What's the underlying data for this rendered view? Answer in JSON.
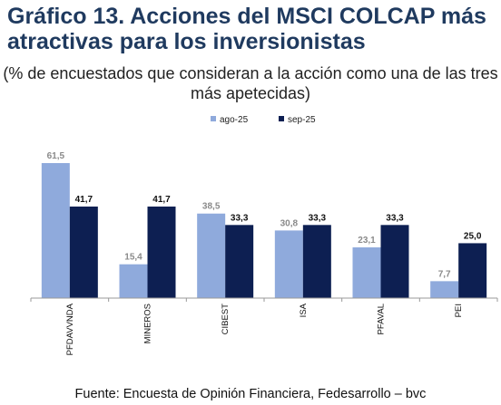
{
  "title": "Gráfico 13. Acciones del MSCI COLCAP más atractivas para los inversionistas",
  "subtitle": "(% de encuestados que consideran a la acción como una de las tres más apetecidas)",
  "source": "Fuente: Encuesta de Opinión Financiera, Fedesarrollo – bvc",
  "colors": {
    "ago": "#8faadc",
    "sep": "#0d1f52"
  },
  "chart_data": {
    "type": "bar",
    "title": "Gráfico 13. Acciones del MSCI COLCAP más atractivas para los inversionistas",
    "subtitle": "(% de encuestados que consideran a la acción como una de las tres más apetecidas)",
    "xlabel": "",
    "ylabel": "",
    "ylim": [
      0,
      61.5
    ],
    "grid": false,
    "legend": "top-center",
    "categories": [
      "PFDAVVNDA",
      "MINEROS",
      "CIBEST",
      "ISA",
      "PFAVAL",
      "PEI"
    ],
    "series": [
      {
        "name": "ago-25",
        "values": [
          61.5,
          15.4,
          38.5,
          30.8,
          23.1,
          7.7
        ],
        "labels": [
          "61,5",
          "15,4",
          "38,5",
          "30,8",
          "23,1",
          "7,7"
        ]
      },
      {
        "name": "sep-25",
        "values": [
          41.7,
          41.7,
          33.3,
          33.3,
          33.3,
          25.0
        ],
        "labels": [
          "41,7",
          "41,7",
          "33,3",
          "33,3",
          "33,3",
          "25,0"
        ]
      }
    ]
  }
}
